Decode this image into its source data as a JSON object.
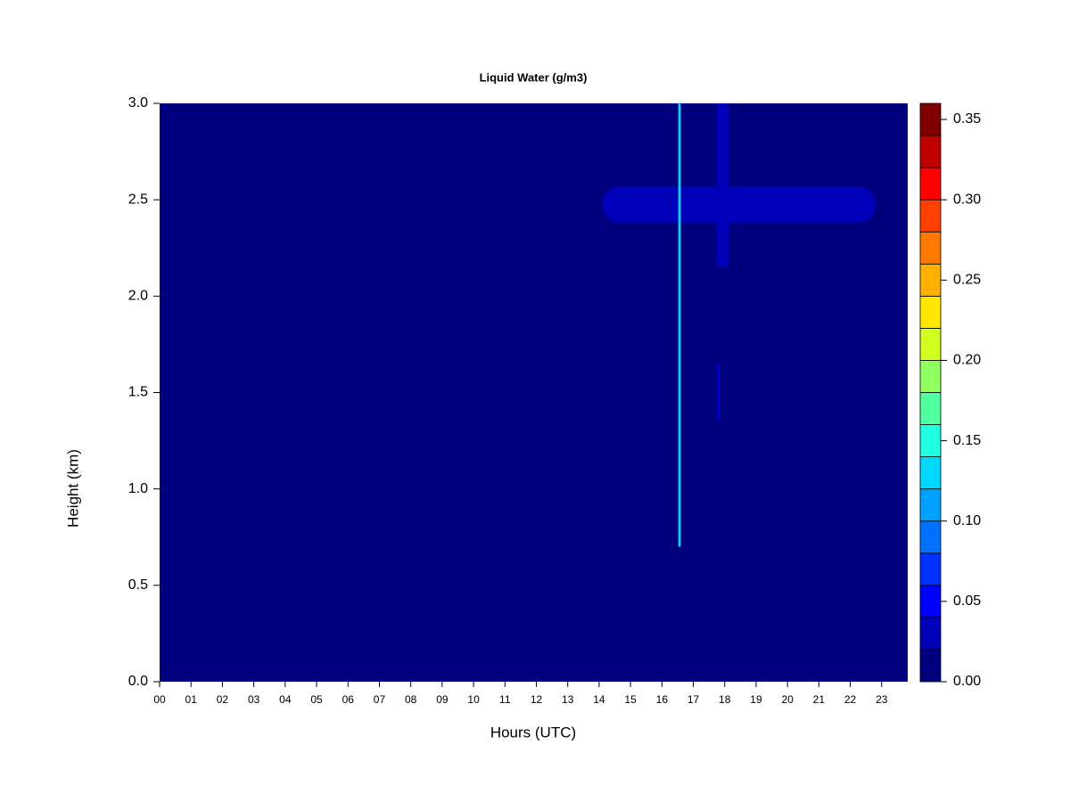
{
  "chart_data": {
    "type": "contour",
    "title": "Liquid Water (g/m3)",
    "xlabel": "Hours (UTC)",
    "ylabel": "Height (km)",
    "xlim": [
      0,
      23.83
    ],
    "xticks": [
      {
        "value": 0,
        "label": "00"
      },
      {
        "value": 1,
        "label": "01"
      },
      {
        "value": 2,
        "label": "02"
      },
      {
        "value": 3,
        "label": "03"
      },
      {
        "value": 4,
        "label": "04"
      },
      {
        "value": 5,
        "label": "05"
      },
      {
        "value": 6,
        "label": "06"
      },
      {
        "value": 7,
        "label": "07"
      },
      {
        "value": 8,
        "label": "08"
      },
      {
        "value": 9,
        "label": "09"
      },
      {
        "value": 10,
        "label": "10"
      },
      {
        "value": 11,
        "label": "11"
      },
      {
        "value": 12,
        "label": "12"
      },
      {
        "value": 13,
        "label": "13"
      },
      {
        "value": 14,
        "label": "14"
      },
      {
        "value": 15,
        "label": "15"
      },
      {
        "value": 16,
        "label": "16"
      },
      {
        "value": 17,
        "label": "17"
      },
      {
        "value": 18,
        "label": "18"
      },
      {
        "value": 19,
        "label": "19"
      },
      {
        "value": 20,
        "label": "20"
      },
      {
        "value": 21,
        "label": "21"
      },
      {
        "value": 22,
        "label": "22"
      },
      {
        "value": 23,
        "label": "23"
      }
    ],
    "ylim": [
      0,
      3
    ],
    "yticks": [
      {
        "value": 0,
        "label": "0.0"
      },
      0.5,
      {
        "value": 1,
        "label": "1.0"
      },
      1.5,
      {
        "value": 2,
        "label": "2.0"
      },
      2.5,
      {
        "value": 3,
        "label": "3.0"
      }
    ],
    "clim": [
      0,
      0.36
    ],
    "cticks": [
      {
        "value": 0,
        "label": "0.00"
      },
      {
        "value": 0.05,
        "label": "0.05"
      },
      {
        "value": 0.1,
        "label": "0.10"
      },
      {
        "value": 0.15,
        "label": "0.15"
      },
      {
        "value": 0.2,
        "label": "0.20"
      },
      {
        "value": 0.25,
        "label": "0.25"
      },
      {
        "value": 0.3,
        "label": "0.30"
      },
      {
        "value": 0.35,
        "label": "0.35"
      }
    ],
    "colors": [
      "#00007f",
      "#0000b8",
      "#0000ff",
      "#0030ff",
      "#0070ff",
      "#00a0ff",
      "#00d8ff",
      "#20ffe0",
      "#50ffa0",
      "#90ff60",
      "#d0ff20",
      "#ffe800",
      "#ffb000",
      "#ff7800",
      "#ff4000",
      "#ff0000",
      "#c00000",
      "#800000"
    ],
    "cells": [
      {
        "x": [
          0,
          23.83
        ],
        "y": [
          0,
          3
        ],
        "value": 0
      },
      {
        "x": [
          14.1,
          22.8
        ],
        "y": [
          2.38,
          2.57
        ],
        "value": 0.03
      },
      {
        "x": [
          17.75,
          18.15
        ],
        "y": [
          2.15,
          3.0
        ],
        "value": 0.03
      },
      {
        "x": [
          17.75,
          17.85
        ],
        "y": [
          1.35,
          1.65
        ],
        "value": 0.03
      },
      {
        "x": [
          16.52,
          16.6
        ],
        "y": [
          0.7,
          3.0
        ],
        "value": 0.12
      }
    ]
  }
}
